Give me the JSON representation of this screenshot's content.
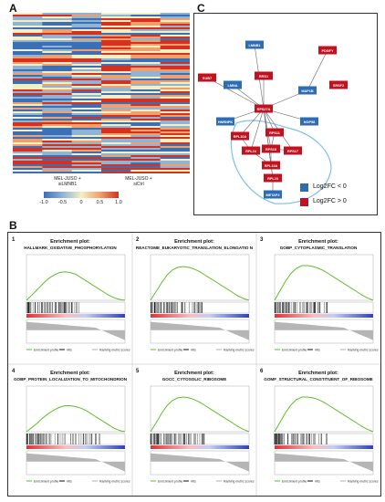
{
  "panels": {
    "a": {
      "label": "A"
    },
    "b": {
      "label": "B"
    },
    "c": {
      "label": "C"
    }
  },
  "heatmap": {
    "conditions": [
      "MEL-JUSO +\nsiLMNB1",
      "MEL-JUSO +\nsiCtrl"
    ],
    "colorbar": {
      "ticks": [
        "-1.0",
        "-0.5",
        "0",
        "0.5",
        "1.0"
      ],
      "colors": [
        "#3b6fb6",
        "#8fb4d6",
        "#f3efc2",
        "#f2a06b",
        "#d7301f"
      ]
    }
  },
  "network": {
    "legend": [
      {
        "text": "Log2FC < 0",
        "color": "#2f6db3"
      },
      {
        "text": "Log2FC > 0",
        "color": "#c1121f"
      }
    ],
    "nodes": [
      {
        "id": "LMNB1",
        "label": "LMNB1",
        "type": "down"
      },
      {
        "id": "PDGFY",
        "label": "PDGFY",
        "type": "up"
      },
      {
        "id": "SUB7",
        "label": "SUB7",
        "type": "up"
      },
      {
        "id": "RRS1",
        "label": "RRS1",
        "type": "up"
      },
      {
        "id": "LMNA",
        "label": "LMNA",
        "type": "down"
      },
      {
        "id": "MAP1B",
        "label": "MAP1B",
        "type": "down"
      },
      {
        "id": "SRSF2",
        "label": "SRSF2",
        "type": "up"
      },
      {
        "id": "HNRNPK",
        "label": "HNRNPK",
        "type": "down"
      },
      {
        "id": "RPS27A",
        "label": "RPS27A",
        "type": "up"
      },
      {
        "id": "NOP58",
        "label": "NOP58",
        "type": "down"
      },
      {
        "id": "RPL10A",
        "label": "RPL10A",
        "type": "up"
      },
      {
        "id": "RPS11",
        "label": "RPS11",
        "type": "up"
      },
      {
        "id": "RPL24",
        "label": "RPL24",
        "type": "up"
      },
      {
        "id": "RPS18",
        "label": "RPS18",
        "type": "up"
      },
      {
        "id": "RPS17",
        "label": "RPS17",
        "type": "up"
      },
      {
        "id": "RPL13A",
        "label": "RPL13A",
        "type": "up"
      },
      {
        "id": "RPL23",
        "label": "RPL23",
        "type": "up"
      },
      {
        "id": "METAP2",
        "label": "METAP2",
        "type": "down"
      }
    ],
    "edges": [
      [
        "LMNB1",
        "RPS27A"
      ],
      [
        "RRS1",
        "RPS27A"
      ],
      [
        "SUB7",
        "RPS27A"
      ],
      [
        "LMNA",
        "RPS27A"
      ],
      [
        "HNRNPK",
        "RPS27A"
      ],
      [
        "MAP1B",
        "RPS27A"
      ],
      [
        "NOP58",
        "RPS27A"
      ],
      [
        "PDGFY",
        "MAP1B"
      ],
      [
        "RPS27A",
        "RPL10A"
      ],
      [
        "RPS27A",
        "RPS11"
      ],
      [
        "RPS27A",
        "RPL24"
      ],
      [
        "RPS27A",
        "RPS18"
      ],
      [
        "RPS27A",
        "RPS17"
      ],
      [
        "RPS27A",
        "RPL13A"
      ],
      [
        "RPS27A",
        "RPL23"
      ],
      [
        "RPL10A",
        "RPL24"
      ],
      [
        "RPS11",
        "RPS18"
      ],
      [
        "RPS18",
        "RPS17"
      ],
      [
        "RPL24",
        "RPL13A"
      ],
      [
        "RPS18",
        "RPL13A"
      ],
      [
        "RPL13A",
        "RPL23"
      ],
      [
        "RPL23",
        "METAP2"
      ]
    ]
  },
  "gsea": {
    "plots": [
      {
        "num": "1",
        "heading": "Enrichment plot:",
        "name": "HALLMARK_OXIDATIVE_PHOSPHORYLATION",
        "curve": [
          0,
          0.12,
          0.25,
          0.38,
          0.5,
          0.58,
          0.64,
          0.66,
          0.64,
          0.6,
          0.52,
          0.44,
          0.36,
          0.28,
          0.2,
          0.12,
          0.06,
          0.02,
          0
        ]
      },
      {
        "num": "2",
        "heading": "Enrichment plot:",
        "name": "REACTOME_EUKARYOTIC_TRANSLATION_ELONGATIO N",
        "curve": [
          0,
          0.2,
          0.4,
          0.58,
          0.7,
          0.76,
          0.78,
          0.76,
          0.72,
          0.66,
          0.58,
          0.5,
          0.42,
          0.34,
          0.26,
          0.18,
          0.1,
          0.04,
          0
        ]
      },
      {
        "num": "3",
        "heading": "Enrichment plot:",
        "name": "GOBP_CYTOPLASMIC_TRANSLATION",
        "curve": [
          0,
          0.22,
          0.44,
          0.62,
          0.74,
          0.8,
          0.8,
          0.78,
          0.74,
          0.68,
          0.6,
          0.52,
          0.44,
          0.36,
          0.28,
          0.2,
          0.12,
          0.05,
          0
        ]
      },
      {
        "num": "4",
        "heading": "Enrichment plot:",
        "name": "GOBP_PROTEIN_LOCALIZATION_TO_MITOCHONDRION",
        "curve": [
          0,
          0.1,
          0.2,
          0.32,
          0.42,
          0.5,
          0.56,
          0.6,
          0.6,
          0.58,
          0.54,
          0.48,
          0.4,
          0.32,
          0.24,
          0.16,
          0.08,
          0.03,
          0
        ]
      },
      {
        "num": "5",
        "heading": "Enrichment plot:",
        "name": "GOCC_CYTOSOLIC_RIBOSOME",
        "curve": [
          0,
          0.2,
          0.42,
          0.6,
          0.72,
          0.78,
          0.8,
          0.78,
          0.74,
          0.68,
          0.6,
          0.52,
          0.44,
          0.36,
          0.28,
          0.2,
          0.12,
          0.05,
          0
        ]
      },
      {
        "num": "6",
        "heading": "Enrichment plot:",
        "name": "GOMF_STRUCTURAL_CONSTITUENT_OF_RIBOSOME",
        "curve": [
          0,
          0.22,
          0.44,
          0.62,
          0.74,
          0.8,
          0.8,
          0.78,
          0.74,
          0.68,
          0.6,
          0.52,
          0.44,
          0.36,
          0.28,
          0.2,
          0.12,
          0.05,
          0
        ]
      }
    ],
    "legend": [
      "Enrichment profile",
      "Hits",
      "Ranking metric scores"
    ]
  }
}
